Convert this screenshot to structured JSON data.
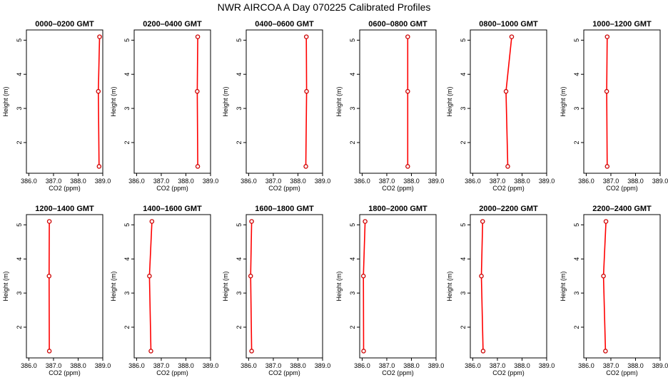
{
  "chart_data": {
    "title": "NWR AIRCOA A  Day 070225  Calibrated Profiles",
    "type": "line",
    "xlabel": "CO2 (ppm)",
    "ylabel": "Height (m)",
    "xlim": [
      385.9,
      389.0
    ],
    "ylim": [
      1.1,
      5.3
    ],
    "x_ticks": [
      "386.0",
      "387.0",
      "388.0",
      "389.0"
    ],
    "y_ticks": [
      "2",
      "3",
      "4",
      "5"
    ],
    "line_color": "#ff0000",
    "marker_color": "#cc0000",
    "heights": [
      5.1,
      3.5,
      1.3
    ],
    "panels": [
      {
        "title": "0000–0200 GMT",
        "x": [
          388.87,
          388.82,
          388.85
        ]
      },
      {
        "title": "0200–0400 GMT",
        "x": [
          388.48,
          388.46,
          388.48
        ]
      },
      {
        "title": "0400–0600 GMT",
        "x": [
          388.34,
          388.35,
          388.32
        ]
      },
      {
        "title": "0600–0800 GMT",
        "x": [
          387.85,
          387.85,
          387.85
        ]
      },
      {
        "title": "0800–1000 GMT",
        "x": [
          387.58,
          387.35,
          387.42
        ]
      },
      {
        "title": "1000–1200 GMT",
        "x": [
          386.85,
          386.83,
          386.85
        ]
      },
      {
        "title": "1200–1400 GMT",
        "x": [
          386.83,
          386.82,
          386.83
        ]
      },
      {
        "title": "1400–1600 GMT",
        "x": [
          386.62,
          386.52,
          386.58
        ]
      },
      {
        "title": "1600–1800 GMT",
        "x": [
          386.12,
          386.08,
          386.12
        ]
      },
      {
        "title": "1800–2000 GMT",
        "x": [
          386.12,
          386.05,
          386.06
        ]
      },
      {
        "title": "2000–2200 GMT",
        "x": [
          386.4,
          386.35,
          386.42
        ]
      },
      {
        "title": "2200–2400 GMT",
        "x": [
          386.8,
          386.7,
          386.78
        ]
      }
    ]
  }
}
